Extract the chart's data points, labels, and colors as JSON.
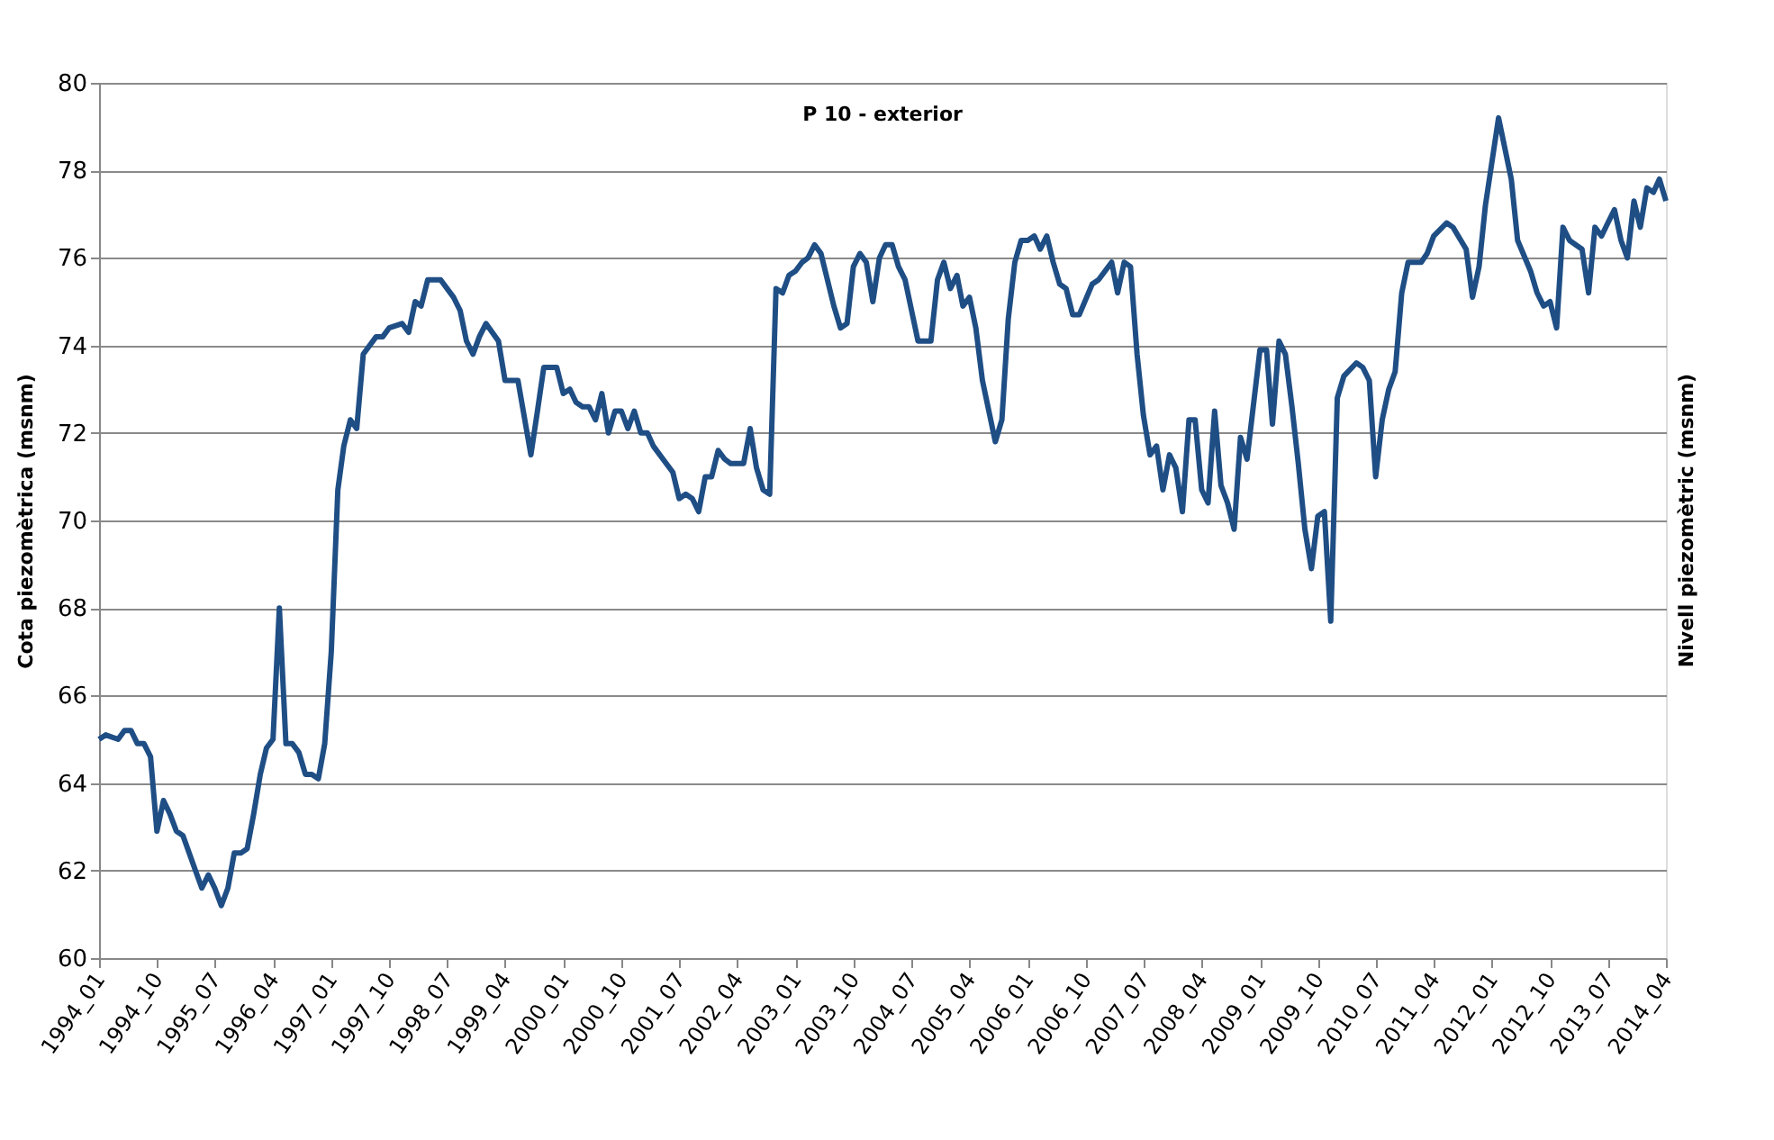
{
  "chart_data": {
    "type": "line",
    "title": "P 10 - exterior",
    "ylabel": "Cota piezomètrica (msnm)",
    "y2label": "Nivell piezomètric (msnm)",
    "x": [
      "1994-01",
      "1994-02",
      "1994-04",
      "1994-05",
      "1994-06",
      "1994-07",
      "1994-08",
      "1994-09",
      "1994-10",
      "1994-11",
      "1994-12",
      "1995-01",
      "1995-02",
      "1995-04",
      "1995-05",
      "1995-06",
      "1995-07",
      "1995-08",
      "1995-09",
      "1995-10",
      "1995-11",
      "1995-12",
      "1996-01",
      "1996-02",
      "1996-03",
      "1996-04",
      "1996-05",
      "1996-06",
      "1996-07",
      "1996-08",
      "1996-09",
      "1996-10",
      "1996-11",
      "1996-12",
      "1997-01",
      "1997-02",
      "1997-03",
      "1997-04",
      "1997-05",
      "1997-06",
      "1997-08",
      "1997-09",
      "1997-10",
      "1997-12",
      "1998-01",
      "1998-02",
      "1998-03",
      "1998-04",
      "1998-05",
      "1998-06",
      "1998-08",
      "1998-09",
      "1998-10",
      "1998-11",
      "1998-12",
      "1999-01",
      "1999-03",
      "1999-04",
      "1999-06",
      "1999-08",
      "1999-09",
      "1999-10",
      "1999-12",
      "2000-01",
      "2000-02",
      "2000-03",
      "2000-04",
      "2000-05",
      "2000-06",
      "2000-07",
      "2000-08",
      "2000-09",
      "2000-10",
      "2000-11",
      "2000-12",
      "2001-01",
      "2001-02",
      "2001-03",
      "2001-05",
      "2001-06",
      "2001-07",
      "2001-08",
      "2001-09",
      "2001-10",
      "2001-11",
      "2001-12",
      "2002-01",
      "2002-02",
      "2002-03",
      "2002-05",
      "2002-06",
      "2002-07",
      "2002-08",
      "2002-09",
      "2002-10",
      "2002-11",
      "2002-12",
      "2003-01",
      "2003-02",
      "2003-03",
      "2003-04",
      "2003-05",
      "2003-07",
      "2003-08",
      "2003-09",
      "2003-10",
      "2003-11",
      "2003-12",
      "2004-01",
      "2004-02",
      "2004-03",
      "2004-04",
      "2004-05",
      "2004-06",
      "2004-08",
      "2004-10",
      "2004-11",
      "2004-12",
      "2005-01",
      "2005-02",
      "2005-03",
      "2005-04",
      "2005-05",
      "2005-06",
      "2005-08",
      "2005-09",
      "2005-10",
      "2005-11",
      "2005-12",
      "2006-01",
      "2006-02",
      "2006-03",
      "2006-04",
      "2006-05",
      "2006-06",
      "2006-07",
      "2006-08",
      "2006-09",
      "2006-11",
      "2006-12",
      "2007-01",
      "2007-02",
      "2007-03",
      "2007-04",
      "2007-05",
      "2007-06",
      "2007-07",
      "2007-08",
      "2007-09",
      "2007-10",
      "2007-11",
      "2007-12",
      "2008-01",
      "2008-02",
      "2008-03",
      "2008-04",
      "2008-05",
      "2008-06",
      "2008-07",
      "2008-08",
      "2008-09",
      "2008-10",
      "2008-11",
      "2009-01",
      "2009-02",
      "2009-03",
      "2009-04",
      "2009-05",
      "2009-06",
      "2009-07",
      "2009-08",
      "2009-09",
      "2009-10",
      "2009-11",
      "2009-12",
      "2010-01",
      "2010-02",
      "2010-04",
      "2010-05",
      "2010-06",
      "2010-07",
      "2010-08",
      "2010-09",
      "2010-10",
      "2010-11",
      "2010-12",
      "2011-02",
      "2011-03",
      "2011-04",
      "2011-06",
      "2011-07",
      "2011-09",
      "2011-10",
      "2011-11",
      "2011-12",
      "2012-02",
      "2012-04",
      "2012-05",
      "2012-07",
      "2012-08",
      "2012-09",
      "2012-10",
      "2012-11",
      "2012-12",
      "2013-01",
      "2013-03",
      "2013-04",
      "2013-05",
      "2013-06",
      "2013-07",
      "2013-08",
      "2013-09",
      "2013-10",
      "2013-11",
      "2013-12",
      "2014-01",
      "2014-02",
      "2014-03",
      "2014-04"
    ],
    "series": [
      {
        "color": "#1f4e85",
        "values": [
          65.0,
          65.1,
          65.0,
          65.2,
          65.2,
          64.9,
          64.9,
          64.6,
          62.9,
          63.6,
          63.3,
          62.9,
          62.8,
          62.0,
          61.6,
          61.9,
          61.6,
          61.2,
          61.6,
          62.4,
          62.4,
          62.5,
          63.3,
          64.2,
          64.8,
          65.0,
          68.0,
          64.9,
          64.9,
          64.7,
          64.2,
          64.2,
          64.1,
          64.9,
          67.0,
          70.7,
          71.7,
          72.3,
          72.1,
          73.8,
          74.2,
          74.2,
          74.4,
          74.5,
          74.3,
          75.0,
          74.9,
          75.5,
          75.5,
          75.5,
          75.1,
          74.8,
          74.1,
          73.8,
          74.2,
          74.5,
          74.1,
          73.2,
          73.2,
          71.5,
          72.5,
          73.5,
          73.5,
          72.9,
          73.0,
          72.7,
          72.6,
          72.6,
          72.3,
          72.9,
          72.0,
          72.5,
          72.5,
          72.1,
          72.5,
          72.0,
          72.0,
          71.7,
          71.3,
          71.1,
          70.5,
          70.6,
          70.5,
          70.2,
          71.0,
          71.0,
          71.6,
          71.4,
          71.3,
          71.3,
          72.1,
          71.2,
          70.7,
          70.6,
          75.3,
          75.2,
          75.6,
          75.7,
          75.9,
          76.0,
          76.3,
          76.1,
          74.9,
          74.4,
          74.5,
          75.8,
          76.1,
          75.9,
          75.0,
          76.0,
          76.3,
          76.3,
          75.8,
          75.5,
          74.1,
          74.1,
          75.5,
          75.9,
          75.3,
          75.6,
          74.9,
          75.1,
          74.4,
          73.2,
          71.8,
          72.3,
          74.6,
          75.9,
          76.4,
          76.4,
          76.5,
          76.2,
          76.5,
          75.9,
          75.4,
          75.3,
          74.7,
          74.7,
          75.4,
          75.5,
          75.7,
          75.9,
          75.2,
          75.9,
          75.8,
          73.8,
          72.4,
          71.5,
          71.7,
          70.7,
          71.5,
          71.2,
          70.2,
          72.3,
          72.3,
          70.7,
          70.4,
          72.5,
          70.8,
          70.4,
          69.8,
          71.9,
          71.4,
          73.9,
          73.9,
          72.2,
          74.1,
          73.8,
          72.6,
          71.3,
          69.8,
          68.9,
          70.1,
          70.2,
          67.7,
          72.8,
          73.3,
          73.6,
          73.5,
          73.2,
          71.0,
          72.3,
          73.0,
          73.4,
          75.2,
          75.9,
          75.9,
          76.1,
          76.5,
          76.8,
          76.7,
          76.2,
          75.1,
          75.8,
          77.2,
          79.2,
          77.8,
          76.4,
          75.7,
          75.2,
          74.9,
          75.0,
          74.4,
          76.7,
          76.4,
          76.2,
          75.2,
          76.7,
          76.5,
          76.8,
          77.1,
          76.4,
          76.0,
          77.3,
          76.7,
          77.6,
          77.5,
          77.8,
          77.3
        ]
      }
    ],
    "xlim": [
      "1994-01",
      "2014-04"
    ],
    "xticks": [
      {
        "value": "1994-01",
        "label": "1994_01"
      },
      {
        "value": "1994-10",
        "label": "1994_10"
      },
      {
        "value": "1995-07",
        "label": "1995_07"
      },
      {
        "value": "1996-04",
        "label": "1996_04"
      },
      {
        "value": "1997-01",
        "label": "1997_01"
      },
      {
        "value": "1997-10",
        "label": "1997_10"
      },
      {
        "value": "1998-07",
        "label": "1998_07"
      },
      {
        "value": "1999-04",
        "label": "1999_04"
      },
      {
        "value": "2000-01",
        "label": "2000_01"
      },
      {
        "value": "2000-10",
        "label": "2000_10"
      },
      {
        "value": "2001-07",
        "label": "2001_07"
      },
      {
        "value": "2002-04",
        "label": "2002_04"
      },
      {
        "value": "2003-01",
        "label": "2003_01"
      },
      {
        "value": "2003-10",
        "label": "2003_10"
      },
      {
        "value": "2004-07",
        "label": "2004_07"
      },
      {
        "value": "2005-04",
        "label": "2005_04"
      },
      {
        "value": "2006-01",
        "label": "2006_01"
      },
      {
        "value": "2006-10",
        "label": "2006_10"
      },
      {
        "value": "2007-07",
        "label": "2007_07"
      },
      {
        "value": "2008-04",
        "label": "2008_04"
      },
      {
        "value": "2009-01",
        "label": "2009_01"
      },
      {
        "value": "2009-10",
        "label": "2009_10"
      },
      {
        "value": "2010-07",
        "label": "2010_07"
      },
      {
        "value": "2011-04",
        "label": "2011_04"
      },
      {
        "value": "2012-01",
        "label": "2012_01"
      },
      {
        "value": "2012-10",
        "label": "2012_10"
      },
      {
        "value": "2013-07",
        "label": "2013_07"
      },
      {
        "value": "2014-04",
        "label": "2014_04"
      }
    ],
    "ylim": [
      60,
      80
    ],
    "yticks": [
      60,
      62,
      64,
      66,
      68,
      70,
      72,
      74,
      76,
      78,
      80
    ],
    "grid": "y",
    "marker": "none",
    "line_style": "solid",
    "legend": false
  }
}
